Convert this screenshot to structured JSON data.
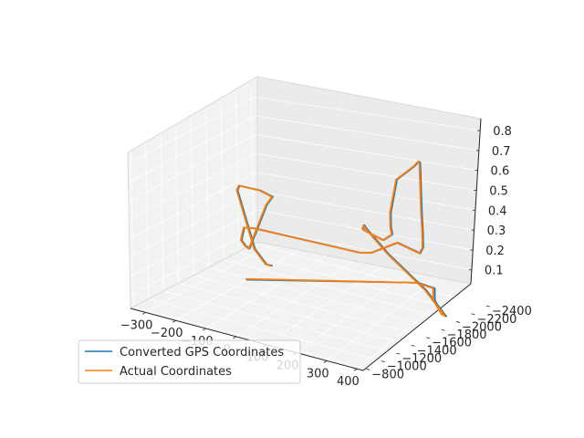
{
  "chart_data": {
    "type": "line",
    "projection": "3d",
    "title": "",
    "xlabel": "",
    "ylabel": "",
    "zlabel": "",
    "grid": true,
    "legend_position": "lower-left",
    "x_ticks": [
      "−300",
      "−200",
      "−100",
      "0",
      "100",
      "200",
      "300",
      "400"
    ],
    "y_ticks": [
      "−2400",
      "−2200",
      "−2000",
      "−1800",
      "−1600",
      "−1400",
      "−1200",
      "−1000",
      "−800"
    ],
    "z_ticks": [
      "0.1",
      "0.2",
      "0.3",
      "0.4",
      "0.5",
      "0.6",
      "0.7",
      "0.8"
    ],
    "xlim": [
      -350,
      420
    ],
    "ylim": [
      -2450,
      -760
    ],
    "zlim": [
      0.03,
      0.86
    ],
    "series": [
      {
        "name": "Converted GPS Coordinates",
        "color": "#1f77b4",
        "x": [
          -200,
          190,
          250,
          300,
          375,
          400,
          398,
          400,
          404,
          410,
          418,
          405,
          372,
          352,
          335,
          320,
          307,
          290,
          280,
          272,
          262,
          252,
          252,
          254,
          255,
          256,
          230,
          -120,
          -160,
          -178,
          -185,
          -187,
          -190,
          -195,
          -250,
          -330,
          -332,
          -270,
          -220,
          -200
        ],
        "y": [
          -1700,
          -2420,
          -2400,
          -2200,
          -2000,
          -1950,
          -1700,
          -1200,
          -900,
          -850,
          -800,
          -880,
          -1250,
          -1450,
          -1500,
          -1560,
          -1700,
          -2000,
          -2100,
          -2150,
          -2200,
          -2250,
          -2250,
          -2200,
          -1900,
          -1550,
          -1500,
          -1500,
          -1530,
          -1560,
          -1640,
          -1700,
          -1950,
          -2050,
          -2100,
          -2150,
          -2130,
          -2100,
          -2050,
          -2050
        ],
        "z": [
          0.05,
          0.05,
          0.05,
          0.05,
          0.05,
          0.06,
          0.25,
          0.55,
          0.75,
          0.78,
          0.77,
          0.74,
          0.6,
          0.58,
          0.6,
          0.66,
          0.8,
          0.8,
          0.8,
          0.78,
          0.5,
          0.38,
          0.3,
          0.28,
          0.4,
          0.42,
          0.42,
          0.4,
          0.38,
          0.3,
          0.25,
          0.22,
          0.4,
          0.42,
          0.42,
          0.4,
          0.38,
          0.1,
          0.05,
          0.05
        ]
      },
      {
        "name": "Actual Coordinates",
        "color": "#ff7f0e",
        "x": [
          -205,
          185,
          245,
          296,
          372,
          397,
          395,
          397,
          401,
          408,
          414,
          402,
          370,
          350,
          333,
          318,
          305,
          288,
          278,
          270,
          260,
          250,
          250,
          252,
          253,
          254,
          228,
          -122,
          -162,
          -180,
          -187,
          -189,
          -192,
          -197,
          -252,
          -332,
          -334,
          -272,
          -222,
          -205
        ],
        "y": [
          -1710,
          -2410,
          -2395,
          -2195,
          -1995,
          -1945,
          -1695,
          -1195,
          -895,
          -845,
          -805,
          -885,
          -1245,
          -1445,
          -1495,
          -1555,
          -1695,
          -1995,
          -2095,
          -2145,
          -2195,
          -2245,
          -2245,
          -2195,
          -1895,
          -1545,
          -1495,
          -1495,
          -1525,
          -1555,
          -1635,
          -1695,
          -1945,
          -2045,
          -2095,
          -2145,
          -2125,
          -2095,
          -2045,
          -2045
        ],
        "z": [
          0.05,
          0.05,
          0.05,
          0.05,
          0.05,
          0.06,
          0.25,
          0.55,
          0.75,
          0.78,
          0.77,
          0.74,
          0.6,
          0.58,
          0.6,
          0.66,
          0.8,
          0.8,
          0.8,
          0.78,
          0.5,
          0.38,
          0.3,
          0.28,
          0.4,
          0.42,
          0.42,
          0.4,
          0.38,
          0.3,
          0.25,
          0.22,
          0.4,
          0.42,
          0.42,
          0.4,
          0.38,
          0.1,
          0.05,
          0.05
        ]
      }
    ]
  }
}
